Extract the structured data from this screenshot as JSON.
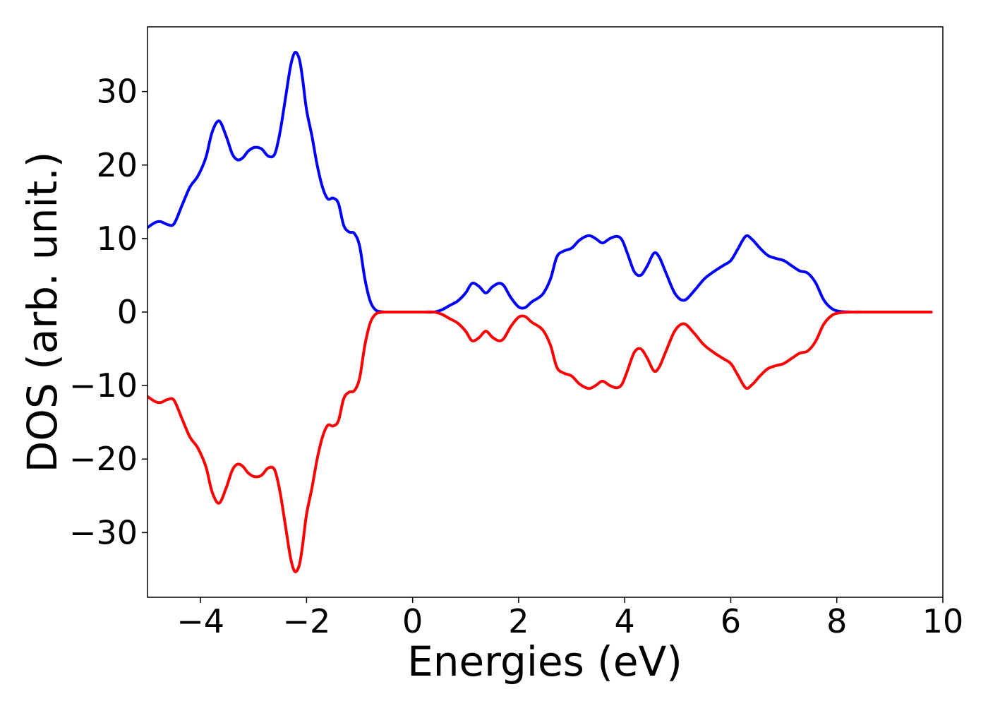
{
  "chart_data": {
    "type": "line",
    "title": "",
    "xlabel": "Energies (eV)",
    "ylabel": "DOS (arb. unit.)",
    "xlim": [
      -5.0,
      10.0
    ],
    "ylim": [
      -38.8,
      38.8
    ],
    "xticks": [
      -4,
      -2,
      0,
      2,
      4,
      6,
      8,
      10
    ],
    "xtick_labels": [
      "−4",
      "−2",
      "0",
      "2",
      "4",
      "6",
      "8",
      "10"
    ],
    "yticks": [
      30,
      20,
      10,
      0,
      -10,
      -20,
      -30
    ],
    "ytick_labels": [
      "30",
      "20",
      "10",
      "0",
      "−10",
      "−20",
      "−30"
    ],
    "grid": false,
    "legend": "none",
    "colors": {
      "spin_up": "#0000ff",
      "spin_down": "#ff0000"
    },
    "series": [
      {
        "color": "#0000ff",
        "x": [
          -5.0,
          -4.85,
          -4.75,
          -4.62,
          -4.5,
          -4.35,
          -4.2,
          -4.05,
          -3.9,
          -3.78,
          -3.65,
          -3.52,
          -3.4,
          -3.3,
          -3.2,
          -3.1,
          -2.98,
          -2.85,
          -2.72,
          -2.6,
          -2.5,
          -2.4,
          -2.3,
          -2.22,
          -2.14,
          -2.08,
          -2.0,
          -1.9,
          -1.8,
          -1.7,
          -1.6,
          -1.5,
          -1.4,
          -1.3,
          -1.2,
          -1.1,
          -1.0,
          -0.9,
          -0.8,
          -0.7,
          -0.6,
          -0.5,
          -0.4,
          -0.3,
          -0.2,
          0.0,
          0.2,
          0.4,
          0.55,
          0.7,
          0.85,
          1.0,
          1.12,
          1.25,
          1.38,
          1.5,
          1.62,
          1.72,
          1.85,
          2.0,
          2.12,
          2.25,
          2.45,
          2.6,
          2.72,
          2.85,
          3.0,
          3.15,
          3.32,
          3.45,
          3.58,
          3.72,
          3.85,
          3.95,
          4.05,
          4.18,
          4.3,
          4.42,
          4.55,
          4.65,
          4.78,
          4.95,
          5.12,
          5.3,
          5.5,
          5.7,
          5.85,
          6.0,
          6.12,
          6.28,
          6.4,
          6.55,
          6.7,
          6.85,
          7.0,
          7.15,
          7.3,
          7.45,
          7.6,
          7.75,
          7.9,
          8.05,
          8.3,
          8.6,
          9.0,
          9.5,
          9.78
        ],
        "y": [
          11.5,
          12.2,
          12.3,
          11.9,
          12.0,
          14.5,
          17.0,
          18.5,
          21.0,
          24.5,
          26.0,
          24.0,
          21.5,
          20.7,
          21.0,
          21.9,
          22.4,
          22.2,
          21.2,
          21.5,
          24.5,
          29.0,
          33.5,
          35.3,
          34.5,
          32.0,
          27.5,
          24.0,
          20.0,
          17.0,
          15.4,
          15.5,
          14.8,
          11.8,
          10.9,
          10.7,
          9.0,
          4.5,
          1.5,
          0.3,
          0.05,
          0.0,
          0.0,
          0.0,
          0.0,
          0.0,
          0.0,
          0.0,
          0.3,
          0.9,
          1.5,
          2.6,
          3.9,
          3.5,
          2.6,
          3.4,
          3.9,
          3.6,
          2.0,
          0.7,
          0.6,
          1.4,
          2.4,
          4.5,
          7.5,
          8.3,
          8.7,
          9.8,
          10.4,
          10.0,
          9.4,
          10.0,
          10.3,
          9.8,
          8.0,
          5.5,
          5.0,
          6.2,
          8.0,
          7.5,
          5.3,
          2.5,
          1.6,
          2.8,
          4.5,
          5.6,
          6.3,
          7.0,
          8.4,
          10.3,
          9.9,
          8.7,
          7.7,
          7.3,
          7.0,
          6.3,
          5.6,
          5.3,
          4.0,
          1.7,
          0.5,
          0.1,
          0.0,
          0.0,
          0.0,
          0.0,
          0.0
        ]
      },
      {
        "color": "#ff0000",
        "x": [
          -5.0,
          -4.85,
          -4.75,
          -4.62,
          -4.5,
          -4.35,
          -4.2,
          -4.05,
          -3.9,
          -3.78,
          -3.65,
          -3.52,
          -3.4,
          -3.3,
          -3.2,
          -3.1,
          -2.98,
          -2.85,
          -2.72,
          -2.6,
          -2.5,
          -2.4,
          -2.3,
          -2.22,
          -2.14,
          -2.08,
          -2.0,
          -1.9,
          -1.8,
          -1.7,
          -1.6,
          -1.5,
          -1.4,
          -1.3,
          -1.2,
          -1.1,
          -1.0,
          -0.9,
          -0.8,
          -0.7,
          -0.6,
          -0.5,
          -0.4,
          -0.3,
          -0.2,
          0.0,
          0.2,
          0.4,
          0.55,
          0.7,
          0.85,
          1.0,
          1.12,
          1.25,
          1.38,
          1.5,
          1.62,
          1.72,
          1.85,
          2.0,
          2.12,
          2.25,
          2.45,
          2.6,
          2.72,
          2.85,
          3.0,
          3.15,
          3.32,
          3.45,
          3.58,
          3.72,
          3.85,
          3.95,
          4.05,
          4.18,
          4.3,
          4.42,
          4.55,
          4.65,
          4.78,
          4.95,
          5.12,
          5.3,
          5.5,
          5.7,
          5.85,
          6.0,
          6.12,
          6.28,
          6.4,
          6.55,
          6.7,
          6.85,
          7.0,
          7.15,
          7.3,
          7.45,
          7.6,
          7.75,
          7.9,
          8.05,
          8.3,
          8.6,
          9.0,
          9.5,
          9.78
        ],
        "y": [
          -11.5,
          -12.2,
          -12.3,
          -11.9,
          -12.0,
          -14.5,
          -17.0,
          -18.5,
          -21.0,
          -24.5,
          -26.0,
          -24.0,
          -21.5,
          -20.7,
          -21.0,
          -21.9,
          -22.4,
          -22.2,
          -21.2,
          -21.5,
          -24.5,
          -29.0,
          -33.5,
          -35.3,
          -34.5,
          -32.0,
          -27.5,
          -24.0,
          -20.0,
          -17.0,
          -15.4,
          -15.5,
          -14.8,
          -11.8,
          -10.9,
          -10.7,
          -9.0,
          -4.5,
          -1.5,
          -0.3,
          -0.05,
          0.0,
          0.0,
          0.0,
          0.0,
          0.0,
          0.0,
          0.0,
          -0.3,
          -0.9,
          -1.5,
          -2.6,
          -3.9,
          -3.5,
          -2.6,
          -3.4,
          -3.9,
          -3.6,
          -2.0,
          -0.7,
          -0.6,
          -1.4,
          -2.4,
          -4.5,
          -7.5,
          -8.3,
          -8.7,
          -9.8,
          -10.4,
          -10.0,
          -9.4,
          -10.0,
          -10.3,
          -9.8,
          -8.0,
          -5.5,
          -5.0,
          -6.2,
          -8.0,
          -7.5,
          -5.3,
          -2.5,
          -1.6,
          -2.8,
          -4.5,
          -5.6,
          -6.3,
          -7.0,
          -8.4,
          -10.3,
          -9.9,
          -8.7,
          -7.7,
          -7.3,
          -7.0,
          -6.3,
          -5.6,
          -5.3,
          -4.0,
          -1.7,
          -0.5,
          -0.1,
          0.0,
          0.0,
          0.0,
          0.0,
          0.0
        ]
      }
    ]
  }
}
